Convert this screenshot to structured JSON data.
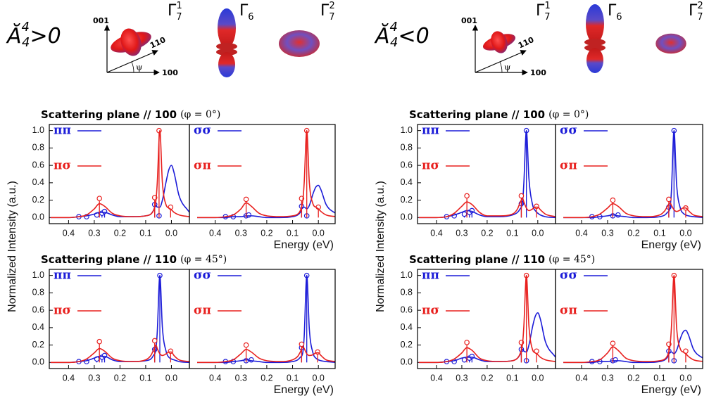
{
  "headers": [
    {
      "symbol": "Ă",
      "sup": "4",
      "sub": "4",
      "relation": ">0",
      "axes": {
        "z": "001",
        "d": "110",
        "x": "100",
        "angle": "ψ"
      },
      "states": [
        {
          "base": "Γ",
          "sub": "7",
          "sup": "1"
        },
        {
          "base": "Γ",
          "sub": "6"
        },
        {
          "base": "Γ",
          "sub": "7",
          "sup": "2"
        }
      ]
    },
    {
      "symbol": "Ă",
      "sup": "4",
      "sub": "4",
      "relation": "<0",
      "axes": {
        "z": "001",
        "d": "110",
        "x": "100",
        "angle": "ψ"
      },
      "states": [
        {
          "base": "Γ",
          "sub": "7",
          "sup": "1"
        },
        {
          "base": "Γ",
          "sub": "6"
        },
        {
          "base": "Γ",
          "sub": "7",
          "sup": "2"
        }
      ]
    }
  ],
  "chart_data": [
    {
      "type": "line",
      "title": "Scattering plane // 100",
      "subtitle": "(φ = 0°)",
      "ylabel": "Normalized Intensity (a.u.)",
      "x": [
        0.47,
        0.4,
        0.36,
        0.33,
        0.3,
        0.28,
        0.26,
        0.23,
        0.2,
        0.15,
        0.1,
        0.08,
        0.07,
        0.06,
        0.055,
        0.045,
        0.035,
        0.02,
        0.01,
        0.0,
        -0.01,
        -0.03,
        -0.07
      ],
      "xlim": [
        0.475,
        -0.07
      ],
      "ylim": [
        -0.07,
        1.07
      ],
      "xticks": [
        0.4,
        0.3,
        0.2,
        0.1,
        {
          "value": 0,
          "label": "0.0"
        }
      ],
      "yticks": [
        {
          "value": 0,
          "label": "0.0"
        },
        0.2,
        0.4,
        0.6,
        0.8,
        {
          "value": 1,
          "label": "1.0"
        }
      ],
      "series": [
        {
          "name": "ππ",
          "color": "#1c1cd8",
          "values": [
            0,
            0,
            0.01,
            0.02,
            0.04,
            0.06,
            0.06,
            0.03,
            0.01,
            0.01,
            0.02,
            0.04,
            0.08,
            0.14,
            0.12,
            0.12,
            0.2,
            0.42,
            0.55,
            0.6,
            0.52,
            0.25,
            0.06
          ],
          "stem_x": [
            0.36,
            0.33,
            0.29,
            0.27,
            0.26,
            0.065,
            0.048
          ],
          "stem_values": [
            0.01,
            0.01,
            0.03,
            0.05,
            0.07,
            0.15,
            0.02
          ]
        },
        {
          "name": "πσ",
          "color": "#e8201e",
          "values": [
            0,
            0,
            0.01,
            0.03,
            0.1,
            0.16,
            0.13,
            0.05,
            0.02,
            0.01,
            0.02,
            0.04,
            0.08,
            0.2,
            0.4,
            1.0,
            0.4,
            0.14,
            0.11,
            0.09,
            0.06,
            0.03,
            0.01
          ],
          "stem_x": [
            0.28,
            0.065,
            0.048,
            0.003
          ],
          "stem_values": [
            0.22,
            0.23,
            1.0,
            0.12
          ]
        }
      ]
    },
    {
      "type": "line",
      "xlabel": "Energy (eV)",
      "x": [
        0.47,
        0.4,
        0.36,
        0.33,
        0.3,
        0.28,
        0.26,
        0.23,
        0.2,
        0.15,
        0.1,
        0.08,
        0.07,
        0.06,
        0.055,
        0.045,
        0.035,
        0.02,
        0.01,
        0.0,
        -0.01,
        -0.03,
        -0.07
      ],
      "xlim": [
        0.5,
        -0.065
      ],
      "ylim": [
        -0.07,
        1.07
      ],
      "xticks": [
        0.4,
        0.3,
        0.2,
        0.1,
        {
          "value": 0,
          "label": "0.0"
        }
      ],
      "series": [
        {
          "name": "σσ",
          "color": "#1c1cd8",
          "values": [
            0,
            0,
            0,
            0.01,
            0.01,
            0.02,
            0.02,
            0.01,
            0,
            0,
            0.01,
            0.03,
            0.06,
            0.12,
            0.12,
            0.1,
            0.14,
            0.28,
            0.35,
            0.37,
            0.32,
            0.15,
            0.04
          ],
          "stem_x": [
            0.36,
            0.33,
            0.28,
            0.27,
            0.065,
            0.045
          ],
          "stem_values": [
            0.01,
            0.01,
            0.02,
            0.03,
            0.13,
            0.02
          ]
        },
        {
          "name": "σπ",
          "color": "#e8201e",
          "values": [
            0,
            0,
            0.01,
            0.03,
            0.1,
            0.17,
            0.13,
            0.05,
            0.02,
            0.01,
            0.02,
            0.04,
            0.08,
            0.2,
            0.4,
            1.0,
            0.4,
            0.15,
            0.12,
            0.1,
            0.07,
            0.03,
            0.01
          ],
          "stem_x": [
            0.28,
            0.065,
            0.045,
            0.0
          ],
          "stem_values": [
            0.21,
            0.22,
            1.0,
            0.12
          ]
        }
      ]
    },
    {
      "type": "line",
      "title": "Scattering plane // 110",
      "subtitle": "(φ = 45°)",
      "x": [
        0.47,
        0.4,
        0.36,
        0.33,
        0.3,
        0.28,
        0.26,
        0.23,
        0.2,
        0.15,
        0.1,
        0.08,
        0.07,
        0.06,
        0.055,
        0.045,
        0.035,
        0.02,
        0.01,
        0.0,
        -0.01,
        -0.03,
        -0.07
      ],
      "xlim": [
        0.475,
        -0.07
      ],
      "ylim": [
        -0.07,
        1.07
      ],
      "xticks": [
        0.4,
        0.3,
        0.2,
        0.1,
        {
          "value": 0,
          "label": "0.0"
        }
      ],
      "yticks": [
        {
          "value": 0,
          "label": "0.0"
        },
        0.2,
        0.4,
        0.6,
        0.8,
        {
          "value": 1,
          "label": "1.0"
        }
      ],
      "series": [
        {
          "name": "ππ",
          "color": "#1c1cd8",
          "values": [
            0,
            0,
            0.01,
            0.02,
            0.05,
            0.07,
            0.07,
            0.03,
            0.01,
            0.01,
            0.02,
            0.04,
            0.08,
            0.16,
            0.35,
            1.0,
            0.4,
            0.12,
            0.06,
            0.04,
            0.03,
            0.01,
            0
          ],
          "stem_x": [
            0.36,
            0.33,
            0.29,
            0.27,
            0.26,
            0.065,
            0.045
          ],
          "stem_values": [
            0.01,
            0.01,
            0.04,
            0.06,
            0.08,
            0.15,
            1.0
          ]
        },
        {
          "name": "πσ",
          "color": "#e8201e",
          "values": [
            0,
            0,
            0.01,
            0.04,
            0.11,
            0.16,
            0.13,
            0.05,
            0.02,
            0.01,
            0.03,
            0.08,
            0.14,
            0.2,
            0.16,
            0.1,
            0.08,
            0.1,
            0.12,
            0.12,
            0.08,
            0.03,
            0.01
          ],
          "stem_x": [
            0.28,
            0.065,
            0.003
          ],
          "stem_values": [
            0.24,
            0.25,
            0.13
          ]
        }
      ]
    },
    {
      "type": "line",
      "xlabel": "Energy (eV)",
      "x": [
        0.47,
        0.4,
        0.36,
        0.33,
        0.3,
        0.28,
        0.26,
        0.23,
        0.2,
        0.15,
        0.1,
        0.08,
        0.07,
        0.06,
        0.055,
        0.045,
        0.035,
        0.02,
        0.01,
        0.0,
        -0.01,
        -0.03,
        -0.07
      ],
      "xlim": [
        0.5,
        -0.065
      ],
      "ylim": [
        -0.07,
        1.07
      ],
      "xticks": [
        0.4,
        0.3,
        0.2,
        0.1,
        {
          "value": 0,
          "label": "0.0"
        }
      ],
      "series": [
        {
          "name": "σσ",
          "color": "#1c1cd8",
          "values": [
            0,
            0,
            0,
            0.01,
            0.02,
            0.03,
            0.02,
            0.01,
            0,
            0,
            0.01,
            0.03,
            0.06,
            0.12,
            0.3,
            1.0,
            0.38,
            0.1,
            0.05,
            0.03,
            0.02,
            0.01,
            0
          ],
          "stem_x": [
            0.36,
            0.33,
            0.28,
            0.26,
            0.065,
            0.045
          ],
          "stem_values": [
            0.01,
            0.01,
            0.02,
            0.03,
            0.17,
            1.0
          ]
        },
        {
          "name": "σπ",
          "color": "#e8201e",
          "values": [
            0,
            0,
            0.01,
            0.03,
            0.1,
            0.15,
            0.12,
            0.05,
            0.02,
            0.01,
            0.03,
            0.07,
            0.12,
            0.18,
            0.16,
            0.1,
            0.08,
            0.09,
            0.11,
            0.11,
            0.08,
            0.03,
            0.01
          ],
          "stem_x": [
            0.28,
            0.065,
            0.003
          ],
          "stem_values": [
            0.2,
            0.21,
            0.12
          ]
        }
      ]
    },
    {
      "type": "line",
      "title": "Scattering plane // 100",
      "subtitle": "(φ = 0°)",
      "ylabel": "Normalized Intensity (a.u.)",
      "x": [
        0.47,
        0.4,
        0.36,
        0.33,
        0.3,
        0.28,
        0.26,
        0.23,
        0.2,
        0.15,
        0.1,
        0.08,
        0.07,
        0.06,
        0.055,
        0.045,
        0.035,
        0.02,
        0.01,
        0.0,
        -0.01,
        -0.03,
        -0.07
      ],
      "xlim": [
        0.475,
        -0.07
      ],
      "ylim": [
        -0.07,
        1.07
      ],
      "xticks": [
        0.4,
        0.3,
        0.2,
        0.1,
        {
          "value": 0,
          "label": "0.0"
        }
      ],
      "yticks": [
        {
          "value": 0,
          "label": "0.0"
        },
        0.2,
        0.4,
        0.6,
        0.8,
        {
          "value": 1,
          "label": "1.0"
        }
      ],
      "series": [
        {
          "name": "ππ",
          "color": "#1c1cd8",
          "values": [
            0,
            0,
            0.01,
            0.03,
            0.06,
            0.08,
            0.07,
            0.03,
            0.01,
            0.01,
            0.03,
            0.06,
            0.1,
            0.18,
            0.4,
            1.0,
            0.45,
            0.14,
            0.08,
            0.05,
            0.03,
            0.01,
            0
          ],
          "stem_x": [
            0.36,
            0.33,
            0.29,
            0.27,
            0.26,
            0.065,
            0.045
          ],
          "stem_values": [
            0.01,
            0.02,
            0.04,
            0.06,
            0.08,
            0.16,
            1.0
          ]
        },
        {
          "name": "πσ",
          "color": "#e8201e",
          "values": [
            0,
            0,
            0.01,
            0.05,
            0.13,
            0.18,
            0.15,
            0.06,
            0.02,
            0.02,
            0.04,
            0.1,
            0.17,
            0.22,
            0.18,
            0.11,
            0.08,
            0.1,
            0.12,
            0.12,
            0.09,
            0.04,
            0.01
          ],
          "stem_x": [
            0.28,
            0.065,
            0.005
          ],
          "stem_values": [
            0.25,
            0.25,
            0.13
          ]
        }
      ]
    },
    {
      "type": "line",
      "xlabel": "Energy (eV)",
      "x": [
        0.47,
        0.4,
        0.36,
        0.33,
        0.3,
        0.28,
        0.26,
        0.23,
        0.2,
        0.15,
        0.1,
        0.08,
        0.07,
        0.06,
        0.055,
        0.045,
        0.035,
        0.02,
        0.01,
        0.0,
        -0.01,
        -0.03,
        -0.07
      ],
      "xlim": [
        0.5,
        -0.065
      ],
      "ylim": [
        -0.07,
        1.07
      ],
      "xticks": [
        0.4,
        0.3,
        0.2,
        0.1,
        {
          "value": 0,
          "label": "0.0"
        }
      ],
      "series": [
        {
          "name": "σσ",
          "color": "#1c1cd8",
          "values": [
            0,
            0,
            0,
            0.01,
            0.02,
            0.03,
            0.02,
            0.01,
            0,
            0,
            0.01,
            0.03,
            0.06,
            0.12,
            0.3,
            1.0,
            0.38,
            0.1,
            0.05,
            0.03,
            0.02,
            0.01,
            0
          ],
          "stem_x": [
            0.36,
            0.33,
            0.28,
            0.26,
            0.065,
            0.045
          ],
          "stem_values": [
            0.01,
            0.01,
            0.02,
            0.03,
            0.12,
            1.0
          ]
        },
        {
          "name": "σπ",
          "color": "#e8201e",
          "values": [
            0,
            0,
            0.01,
            0.04,
            0.11,
            0.16,
            0.13,
            0.05,
            0.02,
            0.01,
            0.03,
            0.08,
            0.13,
            0.17,
            0.14,
            0.09,
            0.07,
            0.09,
            0.11,
            0.11,
            0.08,
            0.03,
            0.01
          ],
          "stem_x": [
            0.28,
            0.065,
            0.0
          ],
          "stem_values": [
            0.2,
            0.21,
            0.11
          ]
        }
      ]
    },
    {
      "type": "line",
      "title": "Scattering plane // 110",
      "subtitle": "(φ = 45°)",
      "x": [
        0.47,
        0.4,
        0.36,
        0.33,
        0.3,
        0.28,
        0.26,
        0.23,
        0.2,
        0.15,
        0.1,
        0.08,
        0.07,
        0.06,
        0.055,
        0.045,
        0.035,
        0.02,
        0.01,
        0.0,
        -0.01,
        -0.03,
        -0.07
      ],
      "xlim": [
        0.475,
        -0.07
      ],
      "ylim": [
        -0.07,
        1.07
      ],
      "xticks": [
        0.4,
        0.3,
        0.2,
        0.1,
        {
          "value": 0,
          "label": "0.0"
        }
      ],
      "yticks": [
        {
          "value": 0,
          "label": "0.0"
        },
        0.2,
        0.4,
        0.6,
        0.8,
        {
          "value": 1,
          "label": "1.0"
        }
      ],
      "series": [
        {
          "name": "ππ",
          "color": "#1c1cd8",
          "values": [
            0,
            0,
            0.01,
            0.02,
            0.05,
            0.06,
            0.06,
            0.03,
            0.01,
            0.01,
            0.02,
            0.05,
            0.09,
            0.15,
            0.13,
            0.12,
            0.2,
            0.42,
            0.53,
            0.57,
            0.5,
            0.24,
            0.06
          ],
          "stem_x": [
            0.36,
            0.33,
            0.29,
            0.27,
            0.26,
            0.065,
            0.045
          ],
          "stem_values": [
            0.01,
            0.01,
            0.03,
            0.05,
            0.07,
            0.15,
            0.02
          ]
        },
        {
          "name": "πσ",
          "color": "#e8201e",
          "values": [
            0,
            0,
            0.01,
            0.04,
            0.11,
            0.17,
            0.14,
            0.05,
            0.02,
            0.01,
            0.02,
            0.05,
            0.1,
            0.22,
            0.42,
            1.0,
            0.42,
            0.14,
            0.11,
            0.09,
            0.06,
            0.03,
            0.01
          ],
          "stem_x": [
            0.28,
            0.065,
            0.045,
            0.005
          ],
          "stem_values": [
            0.23,
            0.23,
            1.0,
            0.13
          ]
        }
      ]
    },
    {
      "type": "line",
      "xlabel": "Energy (eV)",
      "x": [
        0.47,
        0.4,
        0.36,
        0.33,
        0.3,
        0.28,
        0.26,
        0.23,
        0.2,
        0.15,
        0.1,
        0.08,
        0.07,
        0.06,
        0.055,
        0.045,
        0.035,
        0.02,
        0.01,
        0.0,
        -0.01,
        -0.03,
        -0.07
      ],
      "xlim": [
        0.5,
        -0.065
      ],
      "ylim": [
        -0.07,
        1.07
      ],
      "xticks": [
        0.4,
        0.3,
        0.2,
        0.1,
        {
          "value": 0,
          "label": "0.0"
        }
      ],
      "series": [
        {
          "name": "σσ",
          "color": "#1c1cd8",
          "values": [
            0,
            0,
            0,
            0.01,
            0.01,
            0.02,
            0.02,
            0.01,
            0,
            0,
            0.01,
            0.03,
            0.06,
            0.12,
            0.12,
            0.1,
            0.14,
            0.28,
            0.35,
            0.37,
            0.32,
            0.15,
            0.04
          ],
          "stem_x": [
            0.36,
            0.33,
            0.28,
            0.27,
            0.065,
            0.045
          ],
          "stem_values": [
            0.01,
            0.01,
            0.02,
            0.03,
            0.13,
            0.02
          ]
        },
        {
          "name": "σπ",
          "color": "#e8201e",
          "values": [
            0,
            0,
            0.01,
            0.03,
            0.11,
            0.18,
            0.14,
            0.05,
            0.02,
            0.01,
            0.02,
            0.04,
            0.08,
            0.2,
            0.4,
            1.0,
            0.4,
            0.15,
            0.12,
            0.1,
            0.07,
            0.03,
            0.01
          ],
          "stem_x": [
            0.28,
            0.065,
            0.045,
            0.0
          ],
          "stem_values": [
            0.22,
            0.21,
            1.0,
            0.13
          ]
        }
      ]
    }
  ]
}
